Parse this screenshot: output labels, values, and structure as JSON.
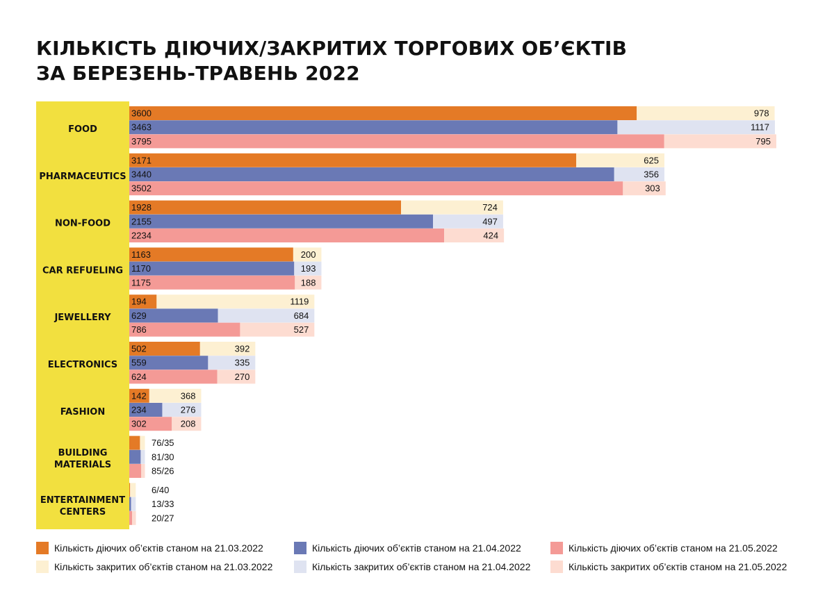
{
  "title": {
    "line1": "КІЛЬКІСТЬ ДІЮЧИХ/ЗАКРИТИХ ТОРГОВИХ ОБ’ЄКТІВ",
    "line2": "ЗА БЕРЕЗЕНЬ-ТРАВЕНЬ 2022"
  },
  "colors": {
    "category_band": "#f2e03f",
    "open": [
      "#e47a26",
      "#6a79b5",
      "#f49a96"
    ],
    "closed": [
      "#fdf0d2",
      "#dfe3f1",
      "#fddcd1"
    ]
  },
  "legend": [
    {
      "label": "Кількість діючих об’єктів станом на 21.03.2022",
      "color": "#e47a26"
    },
    {
      "label": "Кількість діючих об’єктів станом на 21.04.2022",
      "color": "#6a79b5"
    },
    {
      "label": "Кількість діючих об’єктів станом на 21.05.2022",
      "color": "#f49a96"
    },
    {
      "label": "Кількість закритих об’єктів станом на 21.03.2022",
      "color": "#fdf0d2"
    },
    {
      "label": "Кількість закритих об’єктів станом на 21.04.2022",
      "color": "#dfe3f1"
    },
    {
      "label": "Кількість закритих об’єктів станом на 21.05.2022",
      "color": "#fddcd1"
    }
  ],
  "chart_data": {
    "type": "bar",
    "orientation": "horizontal",
    "stacked": true,
    "title": "КІЛЬКІСТЬ ДІЮЧИХ/ЗАКРИТИХ ТОРГОВИХ ОБ’ЄКТІВ ЗА БЕРЕЗЕНЬ-ТРАВЕНЬ 2022",
    "dates": [
      "21.03.2022",
      "21.04.2022",
      "21.05.2022"
    ],
    "categories": [
      {
        "name": "FOOD",
        "lines": [
          "FOOD"
        ],
        "open": [
          3600,
          3463,
          3795
        ],
        "closed": [
          978,
          1117,
          795
        ],
        "combined_labels": null
      },
      {
        "name": "PHARMACEUTICS",
        "lines": [
          "PHARMACEUTICS"
        ],
        "open": [
          3171,
          3440,
          3502
        ],
        "closed": [
          625,
          356,
          303
        ],
        "combined_labels": null
      },
      {
        "name": "NON-FOOD",
        "lines": [
          "NON-FOOD"
        ],
        "open": [
          1928,
          2155,
          2234
        ],
        "closed": [
          724,
          497,
          424
        ],
        "combined_labels": null
      },
      {
        "name": "CAR REFUELING",
        "lines": [
          "CAR REFUELING"
        ],
        "open": [
          1163,
          1170,
          1175
        ],
        "closed": [
          200,
          193,
          188
        ],
        "combined_labels": null
      },
      {
        "name": "JEWELLERY",
        "lines": [
          "JEWELLERY"
        ],
        "open": [
          194,
          629,
          786
        ],
        "closed": [
          1119,
          684,
          527
        ],
        "combined_labels": null
      },
      {
        "name": "ELECTRONICS",
        "lines": [
          "ELECTRONICS"
        ],
        "open": [
          502,
          559,
          624
        ],
        "closed": [
          392,
          335,
          270
        ],
        "combined_labels": null
      },
      {
        "name": "FASHION",
        "lines": [
          "FASHION"
        ],
        "open": [
          142,
          234,
          302
        ],
        "closed": [
          368,
          276,
          208
        ],
        "combined_labels": null
      },
      {
        "name": "BUILDING MATERIALS",
        "lines": [
          "BUILDING",
          "MATERIALS"
        ],
        "open": [
          76,
          81,
          85
        ],
        "closed": [
          35,
          30,
          26
        ],
        "combined_labels": [
          "76/35",
          "81/30",
          "85/26"
        ]
      },
      {
        "name": "ENTERTAINMENT CENTERS",
        "lines": [
          "ENTERTAINMENT",
          "CENTERS"
        ],
        "open": [
          6,
          13,
          20
        ],
        "closed": [
          40,
          33,
          27
        ],
        "combined_labels": [
          "6/40",
          "13/33",
          "20/27"
        ]
      }
    ],
    "xlim": [
      0,
      4590
    ]
  }
}
